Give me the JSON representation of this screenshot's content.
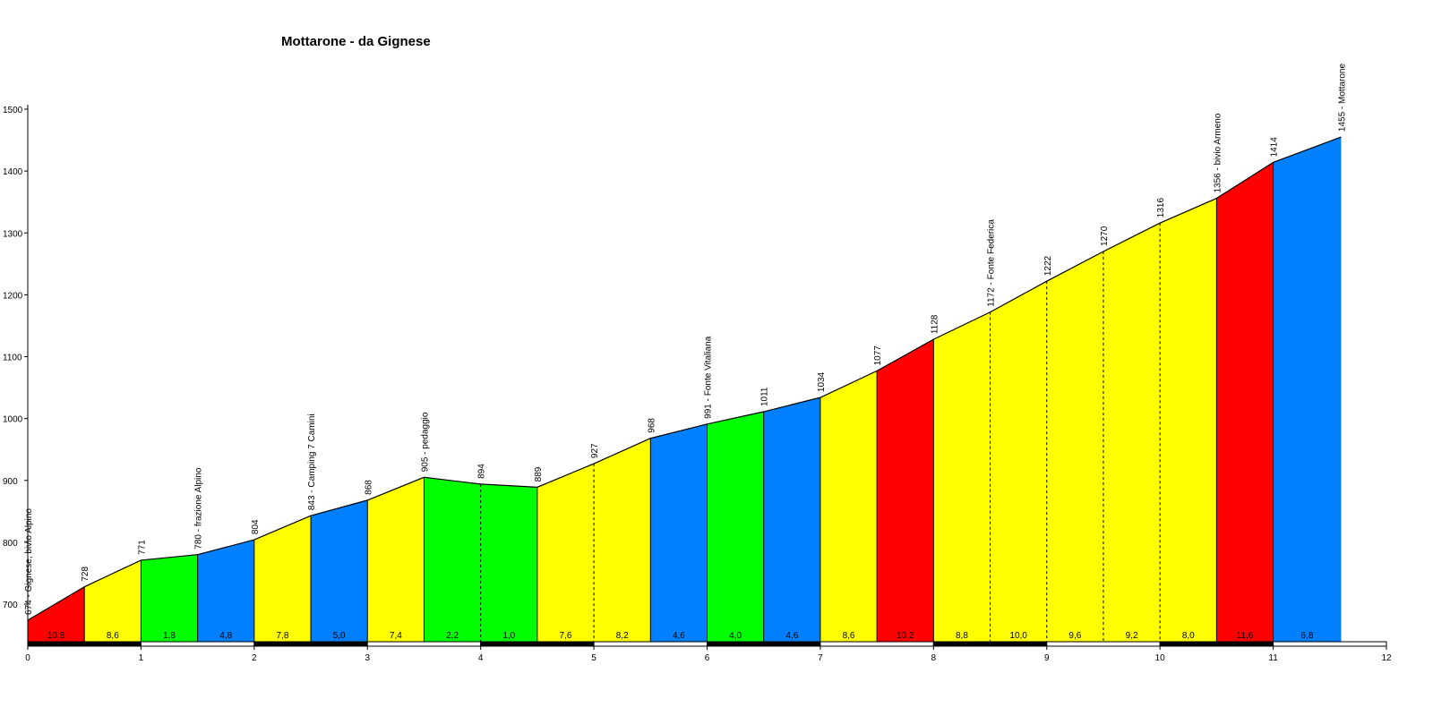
{
  "chart_data": {
    "type": "area",
    "title": "Mottarone - da Gignese",
    "xlabel": "",
    "ylabel": "",
    "xlim": [
      0,
      12
    ],
    "ylim": [
      640,
      1500
    ],
    "x_ticks": [
      "0",
      "1",
      "2",
      "3",
      "4",
      "5",
      "6",
      "7",
      "8",
      "9",
      "10",
      "11",
      "12"
    ],
    "y_ticks": [
      "700",
      "800",
      "900",
      "1000",
      "1100",
      "1200",
      "1300",
      "1400",
      "1500"
    ],
    "grid": false,
    "points": [
      {
        "km": 0.0,
        "alt": 674,
        "label": "674 - Gignese, bivio Alpino"
      },
      {
        "km": 0.5,
        "alt": 728,
        "label": "728"
      },
      {
        "km": 1.0,
        "alt": 771,
        "label": "771"
      },
      {
        "km": 1.5,
        "alt": 780,
        "label": "780 - frazione Alpino"
      },
      {
        "km": 2.0,
        "alt": 804,
        "label": "804"
      },
      {
        "km": 2.5,
        "alt": 843,
        "label": "843 - Camping 7 Camini"
      },
      {
        "km": 3.0,
        "alt": 868,
        "label": "868"
      },
      {
        "km": 3.5,
        "alt": 905,
        "label": "905 - pedaggio"
      },
      {
        "km": 4.0,
        "alt": 894,
        "label": "894"
      },
      {
        "km": 4.5,
        "alt": 889,
        "label": "889"
      },
      {
        "km": 5.0,
        "alt": 927,
        "label": "927"
      },
      {
        "km": 5.5,
        "alt": 968,
        "label": "968"
      },
      {
        "km": 6.0,
        "alt": 991,
        "label": "991 - Fonte Vitaliana"
      },
      {
        "km": 6.5,
        "alt": 1011,
        "label": "1011"
      },
      {
        "km": 7.0,
        "alt": 1034,
        "label": "1034"
      },
      {
        "km": 7.5,
        "alt": 1077,
        "label": "1077"
      },
      {
        "km": 8.0,
        "alt": 1128,
        "label": "1128"
      },
      {
        "km": 8.5,
        "alt": 1172,
        "label": "1172 - Fonte Federica"
      },
      {
        "km": 9.0,
        "alt": 1222,
        "label": "1222"
      },
      {
        "km": 9.5,
        "alt": 1270,
        "label": "1270"
      },
      {
        "km": 10.0,
        "alt": 1316,
        "label": "1316"
      },
      {
        "km": 10.5,
        "alt": 1356,
        "label": "1356 - bivio Armeno"
      },
      {
        "km": 11.0,
        "alt": 1414,
        "label": "1414"
      },
      {
        "km": 11.6,
        "alt": 1455,
        "label": "1455 - Mottarone"
      }
    ],
    "segments": [
      {
        "gradient": "10,8",
        "color": "#ff0000"
      },
      {
        "gradient": "8,6",
        "color": "#ffff00"
      },
      {
        "gradient": "1,8",
        "color": "#00ff00"
      },
      {
        "gradient": "4,8",
        "color": "#0080ff"
      },
      {
        "gradient": "7,8",
        "color": "#ffff00"
      },
      {
        "gradient": "5,0",
        "color": "#0080ff"
      },
      {
        "gradient": "7,4",
        "color": "#ffff00"
      },
      {
        "gradient": "2,2",
        "color": "#00ff00"
      },
      {
        "gradient": "1,0",
        "color": "#00ff00"
      },
      {
        "gradient": "7,6",
        "color": "#ffff00"
      },
      {
        "gradient": "8,2",
        "color": "#ffff00"
      },
      {
        "gradient": "4,6",
        "color": "#0080ff"
      },
      {
        "gradient": "4,0",
        "color": "#00ff00"
      },
      {
        "gradient": "4,6",
        "color": "#0080ff"
      },
      {
        "gradient": "8,6",
        "color": "#ffff00"
      },
      {
        "gradient": "10,2",
        "color": "#ff0000"
      },
      {
        "gradient": "8,8",
        "color": "#ffff00"
      },
      {
        "gradient": "10,0",
        "color": "#ffff00"
      },
      {
        "gradient": "9,6",
        "color": "#ffff00"
      },
      {
        "gradient": "9,2",
        "color": "#ffff00"
      },
      {
        "gradient": "8,0",
        "color": "#ffff00"
      },
      {
        "gradient": "11,6",
        "color": "#ff0000"
      },
      {
        "gradient": "6,8",
        "color": "#0080ff"
      }
    ]
  }
}
